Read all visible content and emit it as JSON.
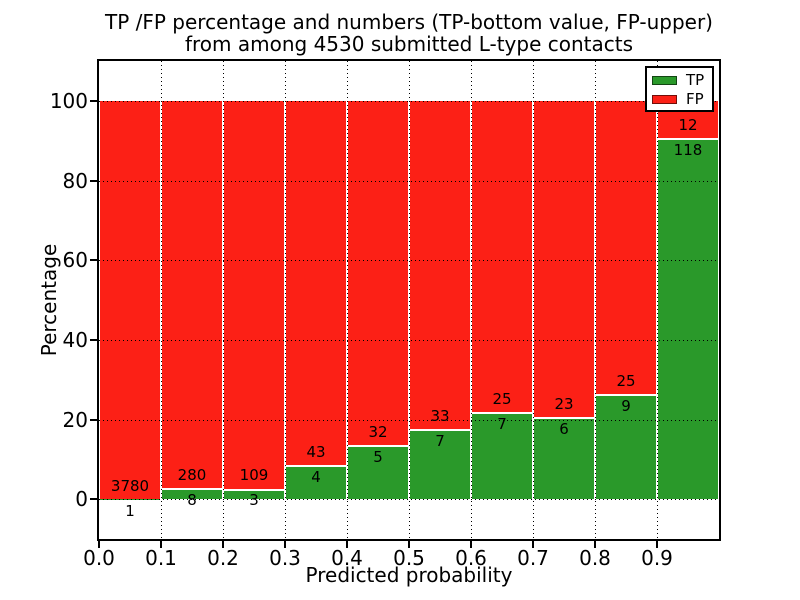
{
  "title": {
    "line1": "TP /FP percentage and numbers (TP-bottom value, FP-upper)",
    "line2": "from among 4530 submitted L-type contacts"
  },
  "chart_data": {
    "type": "bar",
    "stacked": true,
    "normalized": "each bin stacked to 100 percent",
    "title": "TP /FP percentage and numbers (TP-bottom value, FP-upper) from among 4530 submitted L-type contacts",
    "xlabel": "Predicted probability",
    "ylabel": "Percentage",
    "total_contacts": 4530,
    "bins": [
      "0.0-0.1",
      "0.1-0.2",
      "0.2-0.3",
      "0.3-0.4",
      "0.4-0.5",
      "0.5-0.6",
      "0.6-0.7",
      "0.7-0.8",
      "0.8-0.9",
      "0.9-1.0"
    ],
    "series": [
      {
        "name": "TP",
        "color": "#2a992a",
        "counts": [
          1,
          8,
          3,
          4,
          5,
          7,
          7,
          6,
          9,
          118
        ]
      },
      {
        "name": "FP",
        "color": "#fc2016",
        "counts": [
          3780,
          280,
          109,
          43,
          32,
          33,
          25,
          23,
          25,
          12
        ]
      }
    ],
    "tp_percent_per_bin": [
      0.03,
      2.78,
      2.68,
      8.51,
      13.51,
      17.5,
      21.88,
      20.69,
      26.47,
      90.77
    ],
    "ylim": [
      -10,
      110
    ],
    "xlim": [
      0.0,
      1.0
    ],
    "yticks": [
      0,
      20,
      40,
      60,
      80,
      100
    ],
    "xtick_labels": [
      "0.0",
      "0.1",
      "0.2",
      "0.3",
      "0.4",
      "0.5",
      "0.6",
      "0.7",
      "0.8",
      "0.9"
    ],
    "grid": "dotted black, horizontal at yticks and vertical at bin edges",
    "legend_position": "upper right",
    "bar_edge_color": "#ffffff"
  }
}
